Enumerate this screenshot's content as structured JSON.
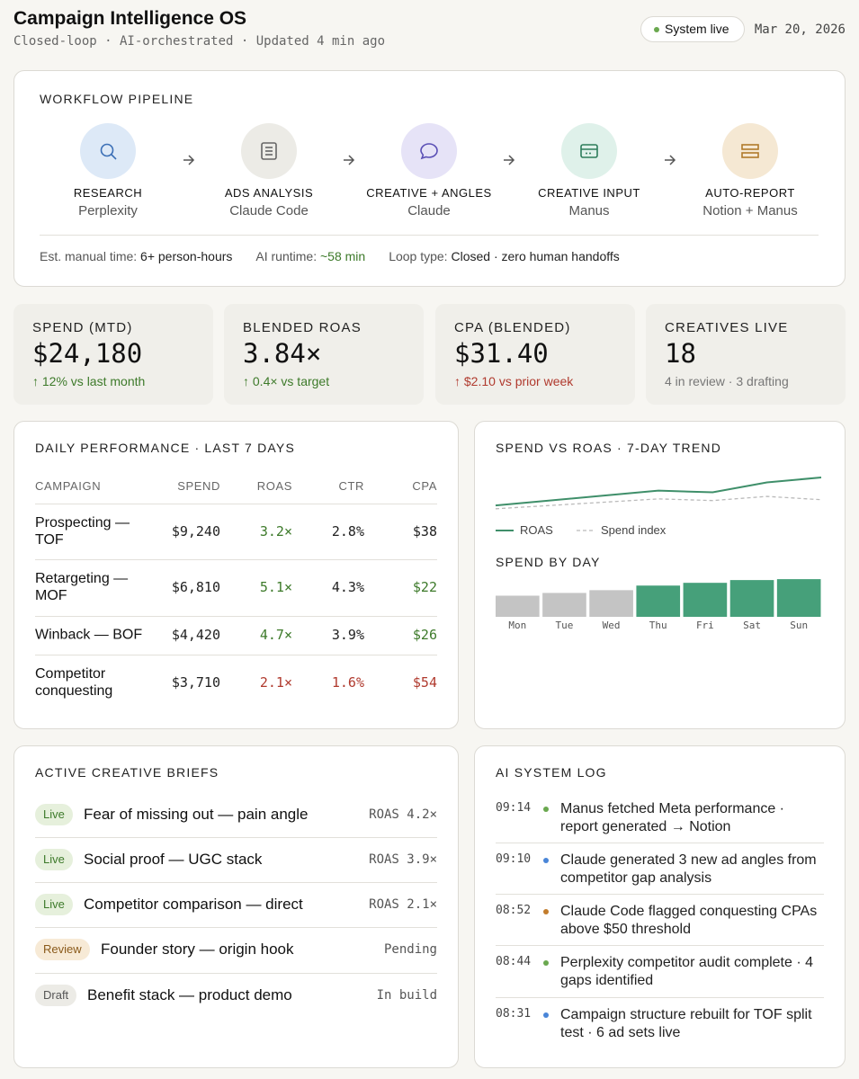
{
  "header": {
    "title": "Campaign Intelligence OS",
    "subtitle": "Closed-loop · AI-orchestrated · Updated 4 min ago",
    "status": "System live",
    "date": "Mar 20, 2026"
  },
  "pipeline": {
    "title": "WORKFLOW PIPELINE",
    "steps": [
      {
        "name": "RESEARCH",
        "tool": "Perplexity",
        "bg": "#dde9f7",
        "color": "#3b6fb6"
      },
      {
        "name": "ADS ANALYSIS",
        "tool": "Claude Code",
        "bg": "#ecebe6",
        "color": "#666666"
      },
      {
        "name": "CREATIVE + ANGLES",
        "tool": "Claude",
        "bg": "#e6e3f7",
        "color": "#5a4fb5"
      },
      {
        "name": "CREATIVE INPUT",
        "tool": "Manus",
        "bg": "#dff1ea",
        "color": "#2e7d5b"
      },
      {
        "name": "AUTO-REPORT",
        "tool": "Notion + Manus",
        "bg": "#f5e8d3",
        "color": "#b07a2a"
      }
    ],
    "footer": [
      {
        "label": "Est. manual time:",
        "value": "6+ person-hours",
        "color": "#222222"
      },
      {
        "label": "AI runtime:",
        "value": "~58 min",
        "color": "#3d7a2a"
      },
      {
        "label": "Loop type:",
        "value": "Closed · zero human handoffs",
        "color": "#222222"
      }
    ]
  },
  "kpis": [
    {
      "label": "SPEND (MTD)",
      "value": "$24,180",
      "delta": "↑ 12% vs last month",
      "color": "#3d7a2a"
    },
    {
      "label": "BLENDED ROAS",
      "value": "3.84×",
      "delta": "↑ 0.4× vs target",
      "color": "#3d7a2a"
    },
    {
      "label": "CPA (BLENDED)",
      "value": "$31.40",
      "delta": "↑ $2.10 vs prior week",
      "color": "#b03a2e"
    },
    {
      "label": "CREATIVES LIVE",
      "value": "18",
      "delta": "4 in review · 3 drafting",
      "color": "#777777"
    }
  ],
  "table": {
    "title": "DAILY PERFORMANCE · LAST 7 DAYS",
    "columns": [
      "CAMPAIGN",
      "SPEND",
      "ROAS",
      "CTR",
      "CPA"
    ],
    "rows": [
      {
        "cells": [
          "Prospecting — TOF",
          "$9,240",
          "3.2×",
          "2.8%",
          "$38"
        ],
        "colors": [
          "#111111",
          "#222222",
          "#3d7a2a",
          "#222222",
          "#222222"
        ]
      },
      {
        "cells": [
          "Retargeting — MOF",
          "$6,810",
          "5.1×",
          "4.3%",
          "$22"
        ],
        "colors": [
          "#111111",
          "#222222",
          "#3d7a2a",
          "#222222",
          "#3d7a2a"
        ]
      },
      {
        "cells": [
          "Winback — BOF",
          "$4,420",
          "4.7×",
          "3.9%",
          "$26"
        ],
        "colors": [
          "#111111",
          "#222222",
          "#3d7a2a",
          "#222222",
          "#3d7a2a"
        ]
      },
      {
        "cells": [
          "Competitor conquesting",
          "$3,710",
          "2.1×",
          "1.6%",
          "$54"
        ],
        "colors": [
          "#111111",
          "#222222",
          "#b03a2e",
          "#b03a2e",
          "#b03a2e"
        ]
      }
    ]
  },
  "trend": {
    "type": "line",
    "title": "SPEND VS ROAS · 7-DAY TREND",
    "ylim": [
      2,
      5
    ],
    "series": [
      {
        "name": "ROAS",
        "color": "#3f8f6a",
        "dashed": false,
        "values": [
          2.7,
          3.0,
          3.3,
          3.6,
          3.5,
          4.1,
          4.4
        ]
      },
      {
        "name": "Spend index",
        "color": "#bbbbbb",
        "dashed": true,
        "values": [
          2.5,
          2.7,
          2.9,
          3.1,
          3.0,
          3.25,
          3.05
        ]
      }
    ]
  },
  "spend_by_day": {
    "type": "bar",
    "title": "SPEND BY DAY",
    "ylim": [
      0,
      45
    ],
    "categories": [
      "Mon",
      "Tue",
      "Wed",
      "Thu",
      "Fri",
      "Sat",
      "Sun"
    ],
    "values": [
      23,
      26,
      29,
      34,
      37,
      40,
      41
    ],
    "colors": [
      "#c4c4c4",
      "#c4c4c4",
      "#c4c4c4",
      "#46a07a",
      "#46a07a",
      "#46a07a",
      "#46a07a"
    ]
  },
  "briefs": {
    "title": "ACTIVE CREATIVE BRIEFS",
    "items": [
      {
        "status": "Live",
        "bg": "#e6f0dc",
        "fg": "#3d7a2a",
        "name": "Fear of missing out — pain angle",
        "metric": "ROAS 4.2×"
      },
      {
        "status": "Live",
        "bg": "#e6f0dc",
        "fg": "#3d7a2a",
        "name": "Social proof — UGC stack",
        "metric": "ROAS 3.9×"
      },
      {
        "status": "Live",
        "bg": "#e6f0dc",
        "fg": "#3d7a2a",
        "name": "Competitor comparison — direct",
        "metric": "ROAS 2.1×"
      },
      {
        "status": "Review",
        "bg": "#f7ead6",
        "fg": "#8a5a1a",
        "name": "Founder story — origin hook",
        "metric": "Pending"
      },
      {
        "status": "Draft",
        "bg": "#ecebe6",
        "fg": "#555555",
        "name": "Benefit stack — product demo",
        "metric": "In build"
      }
    ]
  },
  "log": {
    "title": "AI SYSTEM LOG",
    "entries": [
      {
        "time": "09:14",
        "color": "#6aa84f",
        "text": "Manus fetched Meta performance · report generated → Notion"
      },
      {
        "time": "09:10",
        "color": "#4a86d8",
        "text": "Claude generated 3 new ad angles from competitor gap analysis"
      },
      {
        "time": "08:52",
        "color": "#c27c2c",
        "text": "Claude Code flagged conquesting CPAs above $50 threshold"
      },
      {
        "time": "08:44",
        "color": "#6aa84f",
        "text": "Perplexity competitor audit complete · 4 gaps identified"
      },
      {
        "time": "08:31",
        "color": "#4a86d8",
        "text": "Campaign structure rebuilt for TOF split test · 6 ad sets live"
      }
    ]
  }
}
